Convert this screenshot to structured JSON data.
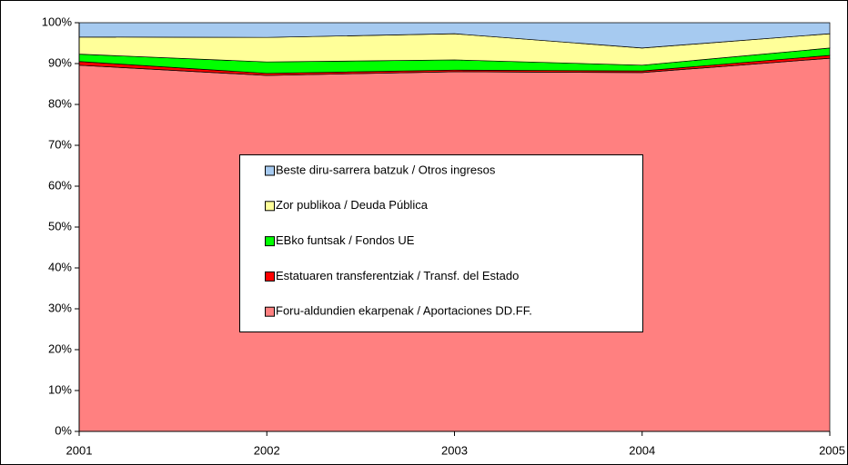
{
  "chart_data": {
    "type": "stacked_area",
    "categories": [
      "2001",
      "2002",
      "2003",
      "2004",
      "2005"
    ],
    "series": [
      {
        "name": "Foru-aldundien ekarpenak / Aportaciones DD.FF.",
        "color": "#ff8080",
        "values": [
          89.6,
          87.1,
          88.0,
          87.8,
          91.3
        ]
      },
      {
        "name": "Estatuaren transferentziak / Transf. del Estado",
        "color": "#ff0000",
        "values": [
          0.9,
          0.5,
          0.4,
          0.4,
          0.7
        ]
      },
      {
        "name": "EBko funtsak / Fondos UE",
        "color": "#00ff00",
        "values": [
          1.8,
          2.8,
          2.5,
          1.4,
          1.8
        ]
      },
      {
        "name": "Zor publikoa / Deuda Pública",
        "color": "#ffff99",
        "values": [
          4.2,
          6.0,
          6.4,
          4.2,
          3.5
        ]
      },
      {
        "name": "Beste diru-sarrera batzuk / Otros ingresos",
        "color": "#a6caf0",
        "values": [
          3.5,
          3.6,
          2.7,
          6.2,
          2.7
        ]
      }
    ],
    "ylim": [
      0,
      100
    ],
    "yticks": [
      {
        "value": 0,
        "label": "0%"
      },
      {
        "value": 10,
        "label": "10%"
      },
      {
        "value": 20,
        "label": "20%"
      },
      {
        "value": 30,
        "label": "30%"
      },
      {
        "value": 40,
        "label": "40%"
      },
      {
        "value": 50,
        "label": "50%"
      },
      {
        "value": 60,
        "label": "60%"
      },
      {
        "value": 70,
        "label": "70%"
      },
      {
        "value": 80,
        "label": "80%"
      },
      {
        "value": 90,
        "label": "90%"
      },
      {
        "value": 100,
        "label": "100%"
      }
    ]
  }
}
